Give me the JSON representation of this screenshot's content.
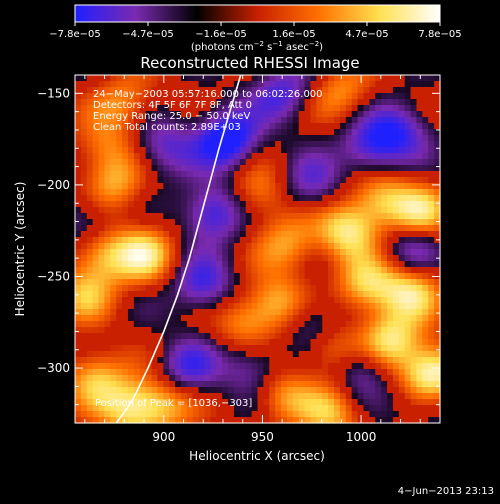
{
  "colorbar": {
    "tick_labels": [
      "−7.8e−05",
      "−4.7e−05",
      "−1.6e−05",
      "1.6e−05",
      "4.7e−05",
      "7.8e−05"
    ],
    "label_prefix": "(photons cm",
    "label_exp1": "−2",
    "label_mid": " s",
    "label_exp2": "−1",
    "label_mid2": " asec",
    "label_exp3": "−2",
    "label_suffix": ")",
    "colors": [
      "#2020ff",
      "#7a2ab0",
      "#000000",
      "#c82000",
      "#ff7000",
      "#ffe050",
      "#ffffff"
    ]
  },
  "plot": {
    "title": "Reconstructed RHESSI Image",
    "annotations": [
      "24−May−2003 05:57:16.000 to 06:02:26.000",
      "Detectors: 4F 5F 6F 7F 8F, Att 0",
      "Energy Range: 25.0 − 50.0 keV",
      "Clean    Total counts: 2.89E+03"
    ],
    "peak_label": "Position of Peak = [1036,−303]",
    "footer_date": "4−Jun−2013 23:13"
  },
  "chart_data": {
    "type": "heatmap",
    "title": "Reconstructed RHESSI Image",
    "xlabel": "Heliocentric X (arcsec)",
    "ylabel": "Heliocentric Y (arcsec)",
    "xlim": [
      855,
      1040
    ],
    "ylim": [
      -330,
      -140
    ],
    "xticks": [
      900,
      950,
      1000
    ],
    "yticks": [
      -150,
      -200,
      -250,
      -300
    ],
    "xtick_labels": [
      "900",
      "950",
      "1000"
    ],
    "ytick_labels": [
      "−150",
      "−200",
      "−250",
      "−300"
    ],
    "colorbar_range": [
      -7.8e-05,
      7.8e-05
    ],
    "peak": [
      1036,
      -303
    ],
    "limb_curve": [
      [
        876,
        -336
      ],
      [
        884,
        -318
      ],
      [
        892,
        -300
      ],
      [
        900,
        -280
      ],
      [
        907,
        -260
      ],
      [
        913,
        -240
      ],
      [
        918,
        -220
      ],
      [
        923,
        -200
      ],
      [
        928,
        -180
      ],
      [
        934,
        -158
      ],
      [
        939,
        -136
      ]
    ],
    "sources": [
      {
        "x": 1036,
        "y": -303,
        "v": 1.0
      },
      {
        "x": 1015,
        "y": -285,
        "v": 0.75
      },
      {
        "x": 1025,
        "y": -258,
        "v": 0.7
      },
      {
        "x": 1003,
        "y": -255,
        "v": 0.65
      },
      {
        "x": 993,
        "y": -225,
        "v": 0.75
      },
      {
        "x": 1010,
        "y": -208,
        "v": 0.6
      },
      {
        "x": 1030,
        "y": -215,
        "v": 0.65
      },
      {
        "x": 990,
        "y": -150,
        "v": 0.45
      },
      {
        "x": 958,
        "y": -265,
        "v": 0.6
      },
      {
        "x": 940,
        "y": -275,
        "v": 0.45
      },
      {
        "x": 963,
        "y": -232,
        "v": 0.5
      },
      {
        "x": 948,
        "y": -205,
        "v": 0.45
      },
      {
        "x": 890,
        "y": -238,
        "v": 0.7
      },
      {
        "x": 868,
        "y": -238,
        "v": 0.6
      },
      {
        "x": 875,
        "y": -200,
        "v": 0.5
      },
      {
        "x": 860,
        "y": -260,
        "v": 0.5
      },
      {
        "x": 865,
        "y": -305,
        "v": 0.6
      },
      {
        "x": 883,
        "y": -322,
        "v": 0.7
      },
      {
        "x": 900,
        "y": -320,
        "v": 0.55
      },
      {
        "x": 960,
        "y": -315,
        "v": 0.5
      },
      {
        "x": 985,
        "y": -325,
        "v": 0.55
      },
      {
        "x": 985,
        "y": -290,
        "v": 0.5
      },
      {
        "x": 880,
        "y": -155,
        "v": 0.45
      },
      {
        "x": 870,
        "y": -180,
        "v": 0.4
      },
      {
        "x": 932,
        "y": -175,
        "v": -0.9
      },
      {
        "x": 925,
        "y": -215,
        "v": -0.7
      },
      {
        "x": 920,
        "y": -255,
        "v": -0.6
      },
      {
        "x": 912,
        "y": -300,
        "v": -0.55
      },
      {
        "x": 1005,
        "y": -180,
        "v": -0.6
      },
      {
        "x": 1020,
        "y": -170,
        "v": -0.55
      },
      {
        "x": 960,
        "y": -150,
        "v": -0.55
      },
      {
        "x": 975,
        "y": -200,
        "v": -0.45
      },
      {
        "x": 1000,
        "y": -300,
        "v": -0.5
      },
      {
        "x": 975,
        "y": -275,
        "v": -0.45
      },
      {
        "x": 900,
        "y": -180,
        "v": -0.5
      },
      {
        "x": 860,
        "y": -220,
        "v": -0.4
      },
      {
        "x": 945,
        "y": -300,
        "v": -0.45
      },
      {
        "x": 1025,
        "y": -235,
        "v": -0.45
      },
      {
        "x": 1035,
        "y": -320,
        "v": -0.3
      }
    ]
  }
}
